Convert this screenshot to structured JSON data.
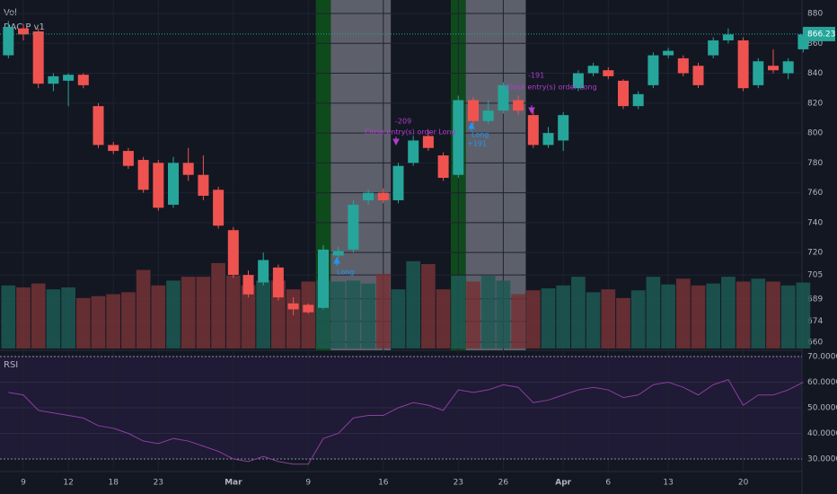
{
  "chart_data": [
    {
      "type": "candlestick",
      "title": "DAC P v1",
      "categories": [
        null,
        "9",
        null,
        null,
        "12",
        null,
        null,
        "18",
        null,
        null,
        "23",
        null,
        null,
        null,
        null,
        "Mar",
        null,
        null,
        null,
        null,
        "9",
        null,
        null,
        null,
        null,
        "16",
        null,
        null,
        null,
        null,
        "23",
        null,
        null,
        "26",
        null,
        null,
        null,
        "Apr",
        null,
        null,
        "6",
        null,
        null,
        null,
        "13",
        null,
        null,
        null,
        null,
        "20",
        null,
        null,
        null,
        null
      ],
      "open": [
        852,
        870,
        868,
        833,
        835,
        839,
        818,
        792,
        788,
        782,
        780,
        752,
        780,
        772,
        762,
        735,
        705,
        700,
        710,
        686,
        685,
        683,
        718,
        722,
        755,
        760,
        755,
        780,
        798,
        785,
        772,
        822,
        808,
        815,
        822,
        812,
        792,
        795,
        830,
        840,
        842,
        835,
        818,
        832,
        852,
        850,
        845,
        852,
        862,
        862,
        832,
        845,
        840,
        856
      ],
      "high": [
        875,
        873,
        870,
        840,
        840,
        840,
        820,
        794,
        790,
        784,
        782,
        784,
        790,
        785,
        764,
        737,
        708,
        720,
        712,
        690,
        686,
        725,
        724,
        755,
        762,
        763,
        780,
        798,
        802,
        787,
        825,
        824,
        822,
        834,
        825,
        815,
        804,
        814,
        842,
        847,
        844,
        836,
        828,
        854,
        857,
        852,
        847,
        864,
        870,
        864,
        850,
        856,
        850,
        870
      ],
      "low": [
        850,
        862,
        830,
        828,
        818,
        830,
        790,
        786,
        776,
        760,
        748,
        750,
        768,
        755,
        736,
        703,
        690,
        698,
        688,
        678,
        679,
        682,
        716,
        720,
        752,
        753,
        753,
        778,
        788,
        768,
        770,
        805,
        806,
        813,
        812,
        790,
        790,
        788,
        828,
        838,
        836,
        816,
        816,
        830,
        850,
        838,
        830,
        850,
        860,
        828,
        830,
        840,
        836,
        854
      ],
      "close": [
        871,
        866,
        833,
        838,
        839,
        832,
        792,
        788,
        778,
        762,
        750,
        780,
        772,
        758,
        738,
        705,
        692,
        715,
        690,
        682,
        680,
        722,
        721,
        752,
        760,
        755,
        778,
        795,
        790,
        770,
        822,
        808,
        815,
        832,
        815,
        792,
        800,
        812,
        840,
        845,
        838,
        818,
        826,
        852,
        855,
        840,
        832,
        862,
        866,
        830,
        848,
        842,
        848,
        866
      ],
      "up_color": "#26a69a",
      "down_color": "#ef5350",
      "ylim": [
        660,
        880
      ],
      "yticks": [
        880,
        860,
        840,
        820,
        800,
        780,
        760,
        740,
        720,
        705,
        689,
        674,
        660
      ],
      "last_price": 866.23,
      "grid": true,
      "annotations": [
        "Long",
        "-209",
        "Close entry(s) order Long",
        "Long",
        "+191",
        "-191",
        "Close entry(s) order Long"
      ]
    },
    {
      "type": "bar",
      "title": "Vol",
      "values": [
        65,
        63,
        67,
        61,
        63,
        52,
        54,
        56,
        58,
        81,
        65,
        70,
        74,
        74,
        88,
        75,
        65,
        70,
        70,
        61,
        69,
        70,
        69,
        70,
        67,
        77,
        61,
        90,
        87,
        61,
        75,
        69,
        75,
        70,
        56,
        60,
        62,
        65,
        74,
        58,
        61,
        52,
        60,
        74,
        66,
        72,
        65,
        67,
        74,
        69,
        72,
        69,
        65,
        68
      ],
      "ylim": [
        0,
        100
      ],
      "up_color": "#1d5954",
      "down_color": "#743235"
    },
    {
      "type": "line",
      "title": "RSI",
      "values": [
        56,
        55,
        49,
        48,
        47,
        46,
        43,
        42,
        40,
        37,
        36,
        38,
        37,
        35,
        33,
        30,
        29,
        31,
        29,
        28,
        28,
        38,
        40,
        46,
        47,
        47,
        50,
        52,
        51,
        49,
        57,
        56,
        57,
        59,
        58,
        52,
        53,
        55,
        57,
        58,
        57,
        54,
        55,
        59,
        60,
        58,
        55,
        59,
        61,
        51,
        55,
        55,
        57,
        60
      ],
      "color": "#8a3f9e",
      "ylim": [
        28,
        71
      ],
      "yticks": [
        {
          "value": 70,
          "label": "70.0000"
        },
        {
          "value": 60,
          "label": "60.0000"
        },
        {
          "value": 50,
          "label": "50.0000"
        },
        {
          "value": 40,
          "label": "40.0000"
        },
        {
          "value": 30,
          "label": "30.0000"
        }
      ]
    }
  ]
}
